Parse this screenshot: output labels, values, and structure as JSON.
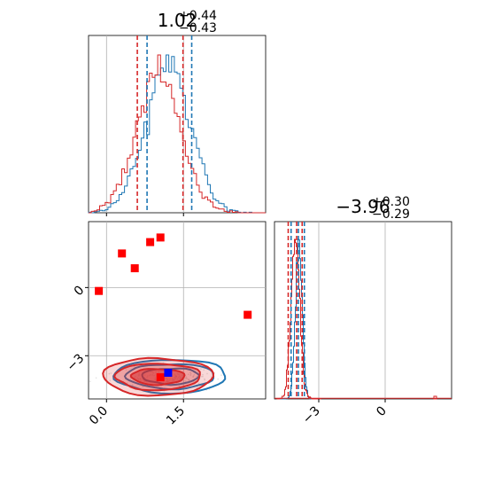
{
  "chart_data": {
    "type": "scatter",
    "layout": "corner-plot",
    "colors": {
      "series_a": "#1f77b4",
      "series_b": "#d62728",
      "marker": "#ff0000",
      "truth": "#0000ff",
      "grid": "#b0b0b0"
    },
    "titles": {
      "p1": {
        "main": "1.02",
        "sup": "+0.44",
        "sub": "−0.43"
      },
      "p2": {
        "main": "−3.96",
        "sup": "+0.30",
        "sub": "−0.29"
      }
    },
    "x_axis": {
      "range": [
        -0.35,
        3.1
      ],
      "ticks": [
        0.0,
        1.5
      ],
      "tick_labels": [
        "0.0",
        "1.5"
      ],
      "grid": true
    },
    "y_axis": {
      "range": [
        -4.9,
        2.9
      ],
      "ticks": [
        0,
        -3
      ],
      "tick_labels": [
        "0",
        "−3"
      ],
      "grid": true
    },
    "x2_axis": {
      "range": [
        -5.0,
        3.0
      ],
      "ticks": [
        -3,
        0
      ],
      "tick_labels": [
        "−3",
        "0"
      ],
      "grid": true
    },
    "quantiles_p1": {
      "series_a": [
        0.79,
        1.66
      ],
      "series_b": [
        0.6,
        1.49
      ]
    },
    "quantiles_p2": {
      "series_a": [
        -4.25,
        -3.92,
        -3.65
      ],
      "series_b": [
        -4.38,
        -4.0,
        -3.75
      ]
    },
    "marker_points": [
      {
        "x": -0.15,
        "y": -0.15
      },
      {
        "x": 0.3,
        "y": 1.5
      },
      {
        "x": 0.55,
        "y": 0.85
      },
      {
        "x": 0.85,
        "y": 2.0
      },
      {
        "x": 1.05,
        "y": 2.2
      },
      {
        "x": 2.75,
        "y": -1.2
      },
      {
        "x": 1.05,
        "y": -3.95
      }
    ],
    "truth_point": {
      "x": 1.2,
      "y": -3.75
    },
    "outlier_p2": -4.1
  }
}
